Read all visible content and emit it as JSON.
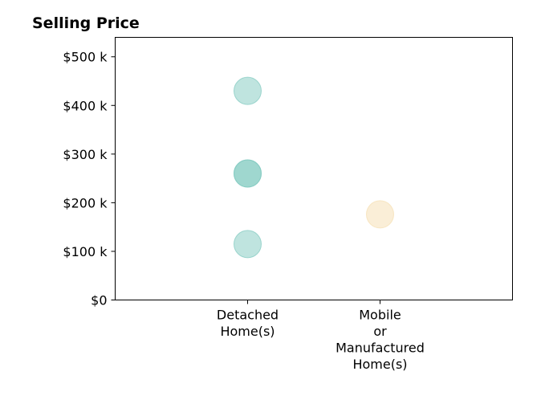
{
  "chart_data": {
    "type": "scatter",
    "title": "Selling Price",
    "xlabel": "",
    "ylabel": "",
    "categories": [
      [
        "Detached",
        "Home(s)"
      ],
      [
        "Mobile",
        "or",
        "Manufactured",
        "Home(s)"
      ]
    ],
    "xlim": [
      -1,
      2
    ],
    "ylim": [
      0,
      540000
    ],
    "yticks": [
      {
        "value": 0,
        "label": "$0"
      },
      {
        "value": 100000,
        "label": "$100 k"
      },
      {
        "value": 200000,
        "label": "$200 k"
      },
      {
        "value": 300000,
        "label": "$300 k"
      },
      {
        "value": 400000,
        "label": "$400 k"
      },
      {
        "value": 500000,
        "label": "$500 k"
      }
    ],
    "grid": false,
    "points": [
      {
        "category": 0,
        "y": 430000,
        "color": "#7fc9bf"
      },
      {
        "category": 0,
        "y": 260000,
        "color": "#7fc9bf"
      },
      {
        "category": 0,
        "y": 260000,
        "color": "#7fc9bf"
      },
      {
        "category": 0,
        "y": 115000,
        "color": "#7fc9bf"
      },
      {
        "category": 1,
        "y": 176000,
        "color": "#f5deb0"
      }
    ],
    "point_opacity": 0.5
  }
}
